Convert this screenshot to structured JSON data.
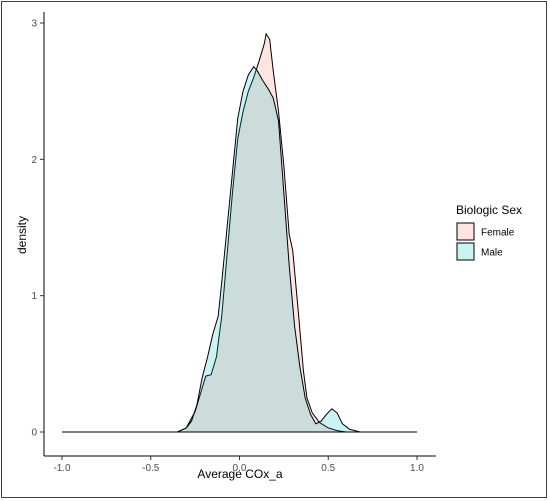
{
  "chart_data": {
    "type": "area",
    "subtype": "density",
    "xlabel": "Average COx_a",
    "ylabel": "density",
    "xlim": [
      -1.0,
      1.0
    ],
    "ylim": [
      0,
      3
    ],
    "x_ticks": [
      -1.0,
      -0.5,
      0.0,
      0.5,
      1.0
    ],
    "x_tick_labels": [
      "-1.0",
      "-0.5",
      "0.0",
      "0.5",
      "1.0"
    ],
    "y_ticks": [
      0,
      1,
      2,
      3
    ],
    "y_tick_labels": [
      "0",
      "1",
      "2",
      "3"
    ],
    "grid": false,
    "legend": {
      "title": "Biologic Sex",
      "placement": "right"
    },
    "series": [
      {
        "name": "Female",
        "fill": "#f8766d",
        "points": [
          [
            -1.0,
            0
          ],
          [
            -0.35,
            0
          ],
          [
            -0.3,
            0.03
          ],
          [
            -0.25,
            0.15
          ],
          [
            -0.22,
            0.28
          ],
          [
            -0.19,
            0.41
          ],
          [
            -0.16,
            0.42
          ],
          [
            -0.13,
            0.55
          ],
          [
            -0.1,
            0.85
          ],
          [
            -0.07,
            1.3
          ],
          [
            -0.04,
            1.75
          ],
          [
            -0.01,
            2.15
          ],
          [
            0.02,
            2.35
          ],
          [
            0.05,
            2.5
          ],
          [
            0.08,
            2.6
          ],
          [
            0.11,
            2.72
          ],
          [
            0.14,
            2.85
          ],
          [
            0.15,
            2.92
          ],
          [
            0.17,
            2.88
          ],
          [
            0.19,
            2.65
          ],
          [
            0.22,
            2.35
          ],
          [
            0.25,
            1.95
          ],
          [
            0.28,
            1.45
          ],
          [
            0.3,
            1.33
          ],
          [
            0.33,
            0.9
          ],
          [
            0.36,
            0.45
          ],
          [
            0.38,
            0.25
          ],
          [
            0.41,
            0.14
          ],
          [
            0.45,
            0.07
          ],
          [
            0.5,
            0.03
          ],
          [
            0.55,
            0.01
          ],
          [
            0.6,
            0
          ],
          [
            1.0,
            0
          ]
        ]
      },
      {
        "name": "Male",
        "fill": "#00bfc4",
        "points": [
          [
            -1.0,
            0
          ],
          [
            -0.35,
            0
          ],
          [
            -0.3,
            0.03
          ],
          [
            -0.27,
            0.08
          ],
          [
            -0.24,
            0.2
          ],
          [
            -0.21,
            0.4
          ],
          [
            -0.18,
            0.55
          ],
          [
            -0.15,
            0.72
          ],
          [
            -0.12,
            0.85
          ],
          [
            -0.1,
            1.1
          ],
          [
            -0.07,
            1.5
          ],
          [
            -0.04,
            1.9
          ],
          [
            -0.01,
            2.3
          ],
          [
            0.02,
            2.5
          ],
          [
            0.05,
            2.62
          ],
          [
            0.08,
            2.68
          ],
          [
            0.1,
            2.65
          ],
          [
            0.13,
            2.58
          ],
          [
            0.16,
            2.52
          ],
          [
            0.19,
            2.45
          ],
          [
            0.22,
            2.28
          ],
          [
            0.25,
            1.75
          ],
          [
            0.28,
            1.22
          ],
          [
            0.31,
            0.78
          ],
          [
            0.34,
            0.48
          ],
          [
            0.37,
            0.25
          ],
          [
            0.4,
            0.13
          ],
          [
            0.43,
            0.06
          ],
          [
            0.46,
            0.08
          ],
          [
            0.49,
            0.13
          ],
          [
            0.52,
            0.17
          ],
          [
            0.55,
            0.14
          ],
          [
            0.58,
            0.06
          ],
          [
            0.62,
            0.02
          ],
          [
            0.68,
            0
          ],
          [
            1.0,
            0
          ]
        ]
      }
    ]
  }
}
